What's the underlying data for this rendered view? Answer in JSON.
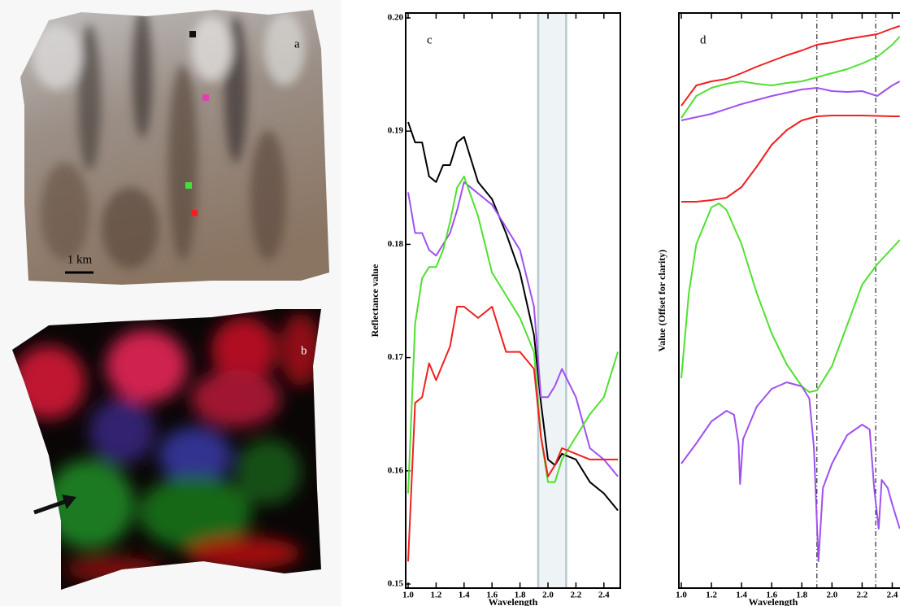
{
  "panels": {
    "a": {
      "label": "a",
      "scale": "1 km"
    },
    "b": {
      "label": "b"
    }
  },
  "chart_data": [
    {
      "type": "line",
      "panel_label": "c",
      "ylabel": "Reflectance value",
      "xlabel": "Wavelength",
      "xlim": [
        1.0,
        2.5
      ],
      "ylim": [
        0.15,
        0.2
      ],
      "xticks": [
        {
          "value": 1,
          "label": "1.0"
        },
        1.2,
        1.4,
        1.6,
        1.8,
        {
          "value": 2,
          "label": "2.0"
        },
        2.2,
        2.4
      ],
      "yticks": [
        0.15,
        0.16,
        0.17,
        0.18,
        0.19,
        {
          "value": 0.2,
          "label": "0.20"
        }
      ],
      "shaded_band": [
        1.93,
        2.13
      ],
      "x": [
        1.0,
        1.05,
        1.1,
        1.15,
        1.2,
        1.25,
        1.3,
        1.35,
        1.4,
        1.5,
        1.6,
        1.7,
        1.8,
        1.9,
        1.95,
        2.0,
        2.05,
        2.1,
        2.2,
        2.3,
        2.4,
        2.5
      ],
      "series": [
        {
          "color": "#000000",
          "values": [
            0.1908,
            0.189,
            0.189,
            0.186,
            0.1855,
            0.187,
            0.187,
            0.189,
            0.1895,
            0.1855,
            0.184,
            0.181,
            0.1775,
            0.172,
            0.166,
            0.161,
            0.1605,
            0.1615,
            0.161,
            0.159,
            0.158,
            0.1565
          ]
        },
        {
          "color": "#a050f0",
          "values": [
            0.1846,
            0.181,
            0.181,
            0.1795,
            0.179,
            0.18,
            0.181,
            0.183,
            0.1855,
            0.1845,
            0.1835,
            0.1815,
            0.1795,
            0.1745,
            0.1665,
            0.1665,
            0.1675,
            0.169,
            0.1665,
            0.162,
            0.161,
            0.1595
          ]
        },
        {
          "color": "#50e030",
          "values": [
            0.158,
            0.173,
            0.177,
            0.178,
            0.178,
            0.1795,
            0.182,
            0.185,
            0.186,
            0.1825,
            0.1775,
            0.1755,
            0.1735,
            0.1705,
            0.163,
            0.159,
            0.159,
            0.161,
            0.163,
            0.165,
            0.1665,
            0.1705
          ]
        },
        {
          "color": "#f02020",
          "values": [
            0.152,
            0.166,
            0.1665,
            0.1695,
            0.168,
            0.1695,
            0.171,
            0.1745,
            0.1745,
            0.1735,
            0.1745,
            0.1705,
            0.1705,
            0.169,
            0.163,
            0.1595,
            0.1605,
            0.162,
            0.1615,
            0.161,
            0.161,
            0.161
          ]
        }
      ]
    },
    {
      "type": "line",
      "panel_label": "d",
      "ylabel": "Value (Offset for clarity)",
      "xlabel": "Wavelength",
      "xlim": [
        1.0,
        2.5
      ],
      "ylim": [
        0,
        7
      ],
      "xticks": [
        {
          "value": 1,
          "label": "1.0"
        },
        1.2,
        1.4,
        1.6,
        1.8,
        {
          "value": 2,
          "label": "2.0"
        },
        2.2,
        2.4
      ],
      "reference_lines": [
        1.9,
        2.29
      ],
      "series": [
        {
          "color": "#f02020",
          "x": [
            1.0,
            1.1,
            1.2,
            1.3,
            1.4,
            1.5,
            1.6,
            1.7,
            1.8,
            1.9,
            2.0,
            2.1,
            2.2,
            2.3,
            2.4,
            2.45
          ],
          "values": [
            5.88,
            6.13,
            6.18,
            6.21,
            6.28,
            6.36,
            6.43,
            6.5,
            6.56,
            6.63,
            6.66,
            6.7,
            6.73,
            6.76,
            6.83,
            6.86
          ]
        },
        {
          "color": "#50e030",
          "x": [
            1.0,
            1.1,
            1.2,
            1.3,
            1.4,
            1.5,
            1.6,
            1.7,
            1.8,
            1.9,
            2.0,
            2.1,
            2.2,
            2.3,
            2.4,
            2.45
          ],
          "values": [
            5.73,
            6.0,
            6.1,
            6.15,
            6.18,
            6.15,
            6.13,
            6.16,
            6.18,
            6.23,
            6.28,
            6.33,
            6.4,
            6.48,
            6.63,
            6.73
          ]
        },
        {
          "color": "#a050f0",
          "x": [
            1.0,
            1.2,
            1.4,
            1.6,
            1.8,
            1.9,
            2.0,
            2.1,
            2.2,
            2.3,
            2.4,
            2.45
          ],
          "values": [
            5.7,
            5.78,
            5.9,
            6.0,
            6.08,
            6.1,
            6.06,
            6.05,
            6.06,
            6.0,
            6.13,
            6.18
          ]
        },
        {
          "color": "#f02020",
          "x": [
            1.0,
            1.1,
            1.2,
            1.3,
            1.4,
            1.5,
            1.6,
            1.7,
            1.8,
            1.9,
            2.0,
            2.2,
            2.4,
            2.45
          ],
          "values": [
            4.7,
            4.7,
            4.72,
            4.75,
            4.88,
            5.13,
            5.4,
            5.58,
            5.7,
            5.75,
            5.76,
            5.76,
            5.75,
            5.75
          ]
        },
        {
          "color": "#50e030",
          "x": [
            1.0,
            1.05,
            1.1,
            1.2,
            1.25,
            1.3,
            1.4,
            1.5,
            1.6,
            1.7,
            1.8,
            1.85,
            1.9,
            2.0,
            2.1,
            2.2,
            2.3,
            2.4,
            2.45
          ],
          "values": [
            2.53,
            3.58,
            4.18,
            4.63,
            4.68,
            4.6,
            4.18,
            3.58,
            3.08,
            2.7,
            2.43,
            2.36,
            2.38,
            2.68,
            3.18,
            3.68,
            3.93,
            4.13,
            4.23
          ]
        },
        {
          "color": "#a050f0",
          "x": [
            1.0,
            1.1,
            1.2,
            1.3,
            1.35,
            1.38,
            1.39,
            1.41,
            1.5,
            1.6,
            1.7,
            1.8,
            1.85,
            1.88,
            1.91,
            1.94,
            2.0,
            2.1,
            2.2,
            2.25,
            2.28,
            2.31,
            2.33,
            2.37,
            2.4,
            2.45
          ],
          "values": [
            1.48,
            1.73,
            2.0,
            2.13,
            2.08,
            1.73,
            1.23,
            1.78,
            2.18,
            2.4,
            2.48,
            2.43,
            2.28,
            1.68,
            0.28,
            1.18,
            1.48,
            1.83,
            1.96,
            1.9,
            1.18,
            0.68,
            1.28,
            1.18,
            0.98,
            0.68
          ]
        }
      ]
    }
  ]
}
